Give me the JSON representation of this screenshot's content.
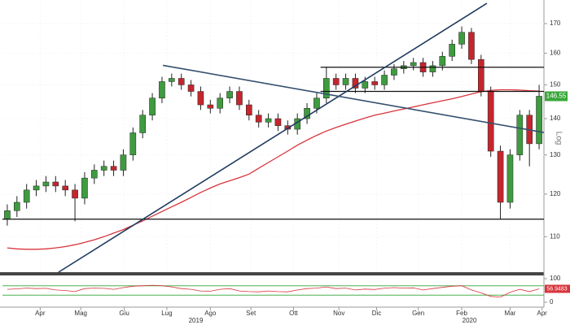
{
  "chart_data": {
    "type": "candlestick",
    "log_scale": true,
    "y_label": "Log",
    "xlim": [
      -0.5,
      55.5
    ],
    "ylim": [
      102.3,
      178.4
    ],
    "yticks": [
      110,
      120,
      130,
      140,
      150,
      160,
      170
    ],
    "xticks": [
      {
        "value": 3.4,
        "label": "Apr"
      },
      {
        "value": 7.6,
        "label": "Mag"
      },
      {
        "value": 12.1,
        "label": "Giu"
      },
      {
        "value": 16.5,
        "label": "Lug"
      },
      {
        "value": 21,
        "label": "Ago"
      },
      {
        "value": 25.2,
        "label": "Set"
      },
      {
        "value": 29.6,
        "label": "Ott"
      },
      {
        "value": 34.3,
        "label": "Nov"
      },
      {
        "value": 38.2,
        "label": "Dic"
      },
      {
        "value": 42.5,
        "label": "Gen"
      },
      {
        "value": 47,
        "label": "Feb"
      },
      {
        "value": 52,
        "label": "Mar"
      },
      {
        "value": 55.3,
        "label": "Apr"
      }
    ],
    "xticks2": [
      {
        "value": 19.5,
        "label": "2019"
      },
      {
        "value": 47.8,
        "label": "2020"
      }
    ],
    "up_color": "#3f9b3f",
    "down_color": "#c4262e",
    "open": [
      114,
      116,
      118,
      121,
      122,
      123,
      122,
      121,
      119,
      124,
      126,
      127,
      126,
      130,
      136,
      141,
      146,
      151,
      152,
      150,
      148,
      144,
      143,
      146,
      148,
      144,
      141,
      139,
      140,
      138,
      137,
      140,
      143,
      146,
      152,
      150,
      152,
      149,
      151,
      150,
      153,
      155,
      156,
      157,
      154,
      156,
      159,
      163,
      167,
      158,
      148,
      131,
      118,
      130,
      141,
      133
    ],
    "high": [
      117.5,
      119.5,
      122.5,
      123.5,
      124.5,
      124.5,
      123.5,
      122.5,
      125.5,
      127.5,
      128.5,
      128.5,
      131.5,
      137.5,
      142.5,
      147.5,
      152.5,
      153.5,
      153.5,
      151.5,
      149.5,
      145.5,
      147.5,
      149.5,
      149.5,
      145.5,
      142.5,
      141.5,
      141.5,
      139.5,
      141.5,
      144.5,
      147.5,
      155.5,
      153.5,
      153.5,
      153.5,
      152.5,
      152.5,
      154.5,
      156.5,
      157.5,
      158.5,
      158.5,
      157.5,
      160.5,
      164.5,
      169,
      168.5,
      159.5,
      149.5,
      132.5,
      131.5,
      142.5,
      142.5,
      150
    ],
    "low": [
      112.5,
      114.5,
      116.5,
      119.5,
      120.5,
      120.5,
      119.5,
      113.5,
      117.5,
      122.5,
      124.5,
      124.5,
      124.5,
      128.5,
      134.5,
      139.5,
      144.5,
      149.5,
      148.5,
      146.5,
      142.5,
      141.5,
      141.5,
      144.5,
      142.5,
      139.5,
      137.5,
      137.5,
      136.5,
      135.5,
      135.5,
      138.5,
      141.5,
      144.5,
      148.5,
      148.5,
      147.5,
      147.5,
      148.5,
      148.5,
      151.5,
      153.5,
      154.5,
      152.5,
      152.5,
      154.5,
      157.5,
      161.5,
      156.5,
      146.5,
      129.5,
      114,
      116.5,
      128.5,
      127,
      131.5
    ],
    "close": [
      116,
      118,
      121,
      122,
      123,
      122,
      121,
      119,
      124,
      126,
      127,
      126,
      130,
      136,
      141,
      146,
      151,
      152,
      150,
      148,
      144,
      143,
      146,
      148,
      144,
      141,
      139,
      140,
      138,
      137,
      140,
      143,
      146,
      152,
      150,
      152,
      149,
      151,
      150,
      153,
      155,
      156,
      157,
      154,
      156,
      159,
      163,
      167,
      158,
      148,
      131,
      118,
      130,
      141,
      133,
      146.55
    ],
    "ma": {
      "color": "#d8343c",
      "values": [
        107.5,
        107.3,
        107.2,
        107.2,
        107.3,
        107.5,
        107.8,
        108.2,
        108.7,
        109.3,
        110,
        110.8,
        111.6,
        112.6,
        113.6,
        114.7,
        115.8,
        116.9,
        118,
        119.2,
        120.4,
        121.5,
        122.5,
        123.3,
        124.1,
        125,
        126.5,
        128,
        129.5,
        131,
        132.6,
        134,
        135.3,
        136.5,
        137.5,
        138.4,
        139.3,
        140.2,
        141,
        141.6,
        142.2,
        142.8,
        143.4,
        144,
        144.6,
        145.2,
        145.8,
        146.5,
        147.2,
        147.9,
        148.3,
        148.5,
        148.5,
        148.4,
        148.2,
        148.1
      ]
    },
    "horizontal_lines": [
      {
        "value": 155.5,
        "from": 32.4
      },
      {
        "value": 148,
        "from": 32.4
      },
      {
        "value": 114,
        "from": -0.5
      }
    ],
    "trend_lines": [
      {
        "color": "#1f3a5f",
        "points": [
          [
            5.3,
            102.3
          ],
          [
            49.6,
            177.2
          ]
        ]
      },
      {
        "color": "#34506e",
        "points": [
          [
            16.1,
            156.1
          ],
          [
            55.5,
            136.1
          ]
        ]
      }
    ],
    "last_color": "#3aa83a",
    "rsi": {
      "color": "#d8343c",
      "level_color": "#4caf50",
      "ylim": [
        0,
        100
      ],
      "yticks": [
        0,
        100
      ],
      "levels": [
        30,
        70
      ],
      "values": [
        55,
        57,
        60,
        58,
        59,
        52,
        50,
        45,
        58,
        60,
        59,
        55,
        62,
        68,
        70,
        72,
        70,
        65,
        58,
        55,
        48,
        47,
        55,
        58,
        48,
        45,
        44,
        48,
        45,
        44,
        52,
        58,
        60,
        65,
        58,
        60,
        52,
        56,
        54,
        60,
        62,
        60,
        61,
        52,
        58,
        63,
        68,
        70,
        52,
        40,
        25,
        22,
        42,
        55,
        45,
        56.9483
      ]
    }
  }
}
